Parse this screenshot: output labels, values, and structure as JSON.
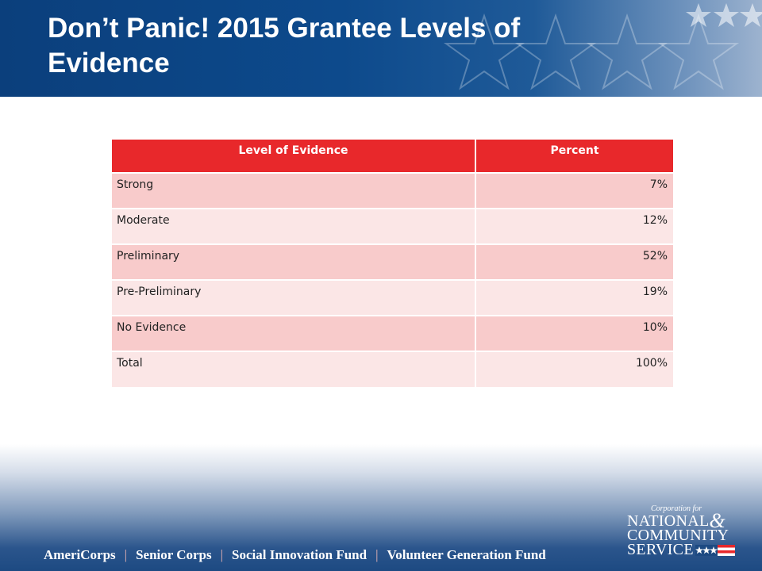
{
  "slide": {
    "title": "Don’t Panic!  2015 Grantee Levels of Evidence"
  },
  "table": {
    "headers": [
      "Level of Evidence",
      "Percent"
    ],
    "rows": [
      {
        "level": "Strong",
        "percent": "7%"
      },
      {
        "level": "Moderate",
        "percent": "12%"
      },
      {
        "level": "Preliminary",
        "percent": "52%"
      },
      {
        "level": "Pre-Preliminary",
        "percent": "19%"
      },
      {
        "level": "No Evidence",
        "percent": "10%"
      },
      {
        "level": "Total",
        "percent": "100%"
      }
    ]
  },
  "footer": {
    "programs": [
      "AmeriCorps",
      "Senior Corps",
      "Social Innovation Fund",
      "Volunteer Generation Fund"
    ],
    "separator": "|"
  },
  "logo": {
    "line1": "Corporation for",
    "line2": "NATIONAL",
    "amp": "&",
    "line3": "COMMUNITY",
    "line4": "SERVICE"
  },
  "colors": {
    "header_blue": "#0b3f7c",
    "table_header_red": "#e8282b",
    "row_dark": "#f8cbcb",
    "row_light": "#fbe6e6"
  }
}
